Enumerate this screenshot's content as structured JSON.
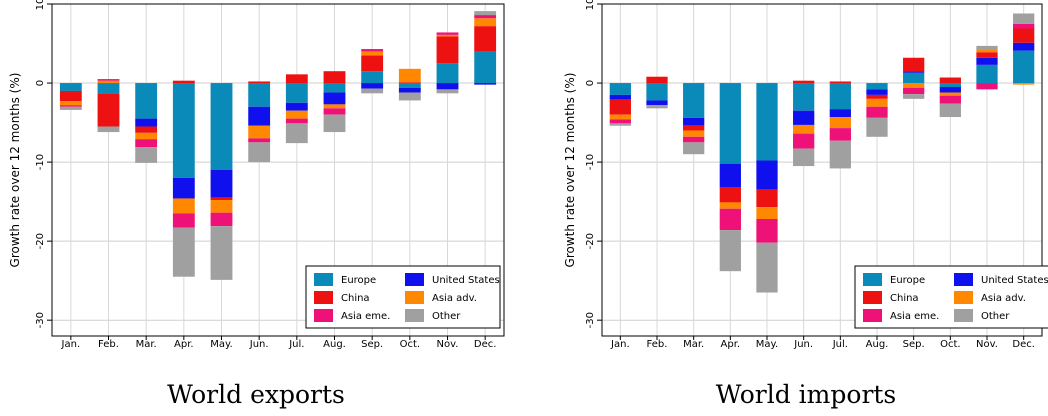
{
  "chart_data": [
    {
      "type": "bar",
      "stacked": true,
      "caption": "World exports",
      "ylabel": "Growth rate over 12 months (%)",
      "ylim": [
        -32,
        10
      ],
      "yticks": [
        10,
        0,
        -10,
        -20,
        -30
      ],
      "grid": true,
      "legend_position": "bottom-right",
      "categories": [
        "Jan.",
        "Feb.",
        "Mar.",
        "Apr.",
        "May.",
        "Jun.",
        "Jul.",
        "Aug.",
        "Sep.",
        "Oct.",
        "Nov.",
        "Dec."
      ],
      "series": [
        {
          "name": "Europe",
          "color": "#0a8ab8",
          "values": [
            -1.0,
            -1.3,
            -4.5,
            -12.0,
            -11.0,
            -3.0,
            -2.5,
            -1.2,
            1.5,
            -0.6,
            2.5,
            4.0
          ]
        },
        {
          "name": "United States",
          "color": "#1010ee",
          "values": [
            0.0,
            0.0,
            -1.0,
            -2.6,
            -3.5,
            -2.4,
            -1.0,
            -1.5,
            -0.7,
            -0.6,
            -0.8,
            -0.2
          ]
        },
        {
          "name": "China",
          "color": "#ee1111",
          "values": [
            -1.3,
            -4.2,
            -0.8,
            0.3,
            -0.3,
            0.2,
            1.1,
            1.5,
            2.0,
            0.1,
            3.4,
            3.2
          ]
        },
        {
          "name": "Asia adv.",
          "color": "#ff8800",
          "values": [
            -0.5,
            0.3,
            -0.8,
            -1.9,
            -1.6,
            -1.6,
            -1.0,
            -0.5,
            0.5,
            1.7,
            0.2,
            1.0
          ]
        },
        {
          "name": "Asia eme.",
          "color": "#ee1177",
          "values": [
            -0.2,
            0.2,
            -1.0,
            -1.8,
            -1.7,
            -0.5,
            -0.6,
            -0.8,
            0.3,
            0.0,
            0.3,
            0.4
          ]
        },
        {
          "name": "Other",
          "color": "#a0a0a0",
          "values": [
            -0.4,
            -0.7,
            -2.0,
            -6.2,
            -6.8,
            -2.5,
            -2.5,
            -2.2,
            -0.6,
            -1.0,
            -0.5,
            0.5
          ]
        }
      ]
    },
    {
      "type": "bar",
      "stacked": true,
      "caption": "World imports",
      "ylabel": "Growth rate over 12 months (%)",
      "ylim": [
        -32,
        10
      ],
      "yticks": [
        10,
        0,
        -10,
        -20,
        -30
      ],
      "grid": true,
      "legend_position": "bottom-right",
      "categories": [
        "Jan.",
        "Feb.",
        "Mar.",
        "Apr.",
        "May.",
        "Jun.",
        "Jul.",
        "Aug.",
        "Sep.",
        "Oct.",
        "Nov.",
        "Dec."
      ],
      "series": [
        {
          "name": "Europe",
          "color": "#0a8ab8",
          "values": [
            -1.5,
            -2.2,
            -4.4,
            -10.2,
            -9.8,
            -3.5,
            -3.3,
            -0.8,
            1.3,
            -0.5,
            2.3,
            4.1
          ]
        },
        {
          "name": "United States",
          "color": "#1010ee",
          "values": [
            -0.6,
            -0.6,
            -1.0,
            -3.0,
            -3.7,
            -1.8,
            -1.0,
            -0.7,
            0.2,
            -0.7,
            0.9,
            1.0
          ]
        },
        {
          "name": "China",
          "color": "#ee1111",
          "values": [
            -1.9,
            0.8,
            -0.6,
            -1.9,
            -2.2,
            0.3,
            0.2,
            -0.5,
            1.7,
            0.7,
            0.7,
            1.8
          ]
        },
        {
          "name": "Asia adv.",
          "color": "#ff8800",
          "values": [
            -0.6,
            0.0,
            -0.8,
            -0.8,
            -1.5,
            -1.1,
            -1.4,
            -1.0,
            -0.6,
            -0.4,
            0.4,
            -0.2
          ]
        },
        {
          "name": "Asia eme.",
          "color": "#ee1177",
          "values": [
            -0.5,
            0.0,
            -0.7,
            -2.7,
            -3.0,
            -1.9,
            -1.6,
            -1.4,
            -0.8,
            -1.0,
            -0.8,
            0.6
          ]
        },
        {
          "name": "Other",
          "color": "#a0a0a0",
          "values": [
            -0.3,
            -0.4,
            -1.5,
            -5.2,
            -6.3,
            -2.2,
            -3.5,
            -2.4,
            -0.6,
            -1.7,
            0.4,
            1.3
          ]
        }
      ]
    }
  ],
  "legend": {
    "items": [
      "Europe",
      "United States",
      "China",
      "Asia adv.",
      "Asia eme.",
      "Other"
    ]
  }
}
